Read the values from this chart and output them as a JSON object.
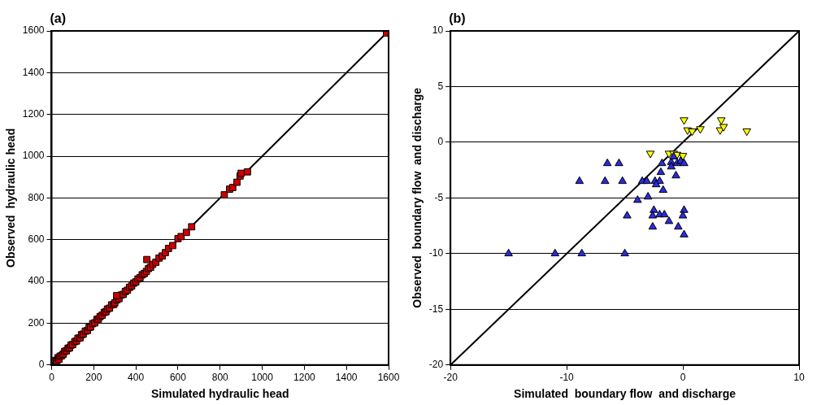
{
  "chart_data": [
    {
      "type": "scatter",
      "title": "(a)",
      "xlabel": "Simulated hydraulic head",
      "ylabel": "Observed  hydraulic head",
      "xlim": [
        0,
        1600
      ],
      "ylim": [
        0,
        1600
      ],
      "xticks": [
        0,
        200,
        400,
        600,
        800,
        1000,
        1200,
        1400,
        1600
      ],
      "yticks": [
        0,
        200,
        400,
        600,
        800,
        1000,
        1200,
        1400,
        1600
      ],
      "grid": "y",
      "legend": false,
      "series": [
        {
          "color": "#cc0000",
          "marker": "square",
          "x": [
            20,
            25,
            30,
            35,
            40,
            48,
            55,
            62,
            70,
            78,
            85,
            92,
            100,
            110,
            118,
            125,
            135,
            142,
            150,
            160,
            170,
            178,
            185,
            195,
            205,
            215,
            222,
            230,
            240,
            250,
            258,
            265,
            275,
            285,
            295,
            300,
            310,
            320,
            330,
            340,
            350,
            360,
            370,
            380,
            390,
            400,
            410,
            420,
            430,
            440,
            450,
            460,
            470,
            480,
            495,
            510,
            525,
            540,
            555,
            575,
            600,
            615,
            640,
            665,
            309,
            452,
            820,
            845,
            860,
            880,
            895,
            900,
            930,
            1590
          ],
          "values": [
            22,
            20,
            35,
            28,
            42,
            45,
            52,
            65,
            68,
            80,
            82,
            95,
            98,
            112,
            115,
            128,
            130,
            145,
            148,
            162,
            165,
            180,
            182,
            198,
            202,
            218,
            220,
            232,
            238,
            252,
            255,
            268,
            272,
            288,
            290,
            298,
            312,
            318,
            335,
            338,
            352,
            358,
            372,
            378,
            392,
            398,
            412,
            418,
            432,
            438,
            448,
            462,
            468,
            482,
            492,
            512,
            522,
            538,
            558,
            572,
            605,
            615,
            635,
            662,
            332,
            505,
            815,
            842,
            850,
            875,
            905,
            918,
            925,
            1590
          ]
        },
        {
          "type": "line",
          "color": "#000000",
          "marker": "none",
          "x": [
            0,
            1600
          ],
          "values": [
            0,
            1600
          ]
        }
      ]
    },
    {
      "type": "scatter",
      "title": "(b)",
      "xlabel": "Simulated  boundary flow  and discharge",
      "ylabel": "Observed  boundary flow  and discharge",
      "xlim": [
        -20,
        10
      ],
      "ylim": [
        -20,
        10
      ],
      "xticks": [
        -20,
        -10,
        0,
        10
      ],
      "yticks": [
        -20,
        -15,
        -10,
        -5,
        0,
        5,
        10
      ],
      "grid": "y",
      "legend": false,
      "series": [
        {
          "color": "#2b2bdd",
          "marker": "triangle",
          "x": [
            -15,
            -11,
            -8.7,
            -5,
            -8.9,
            -6.5,
            -5.5,
            -6.7,
            -5.2,
            -3.5,
            -3.1,
            -2.4,
            -2,
            -2.3,
            -1.7,
            -1.9,
            -1.8,
            -3.9,
            -3,
            -4.8,
            -2.5,
            -2.6,
            -2,
            -1.6,
            -1.2,
            -2.6,
            -0.4,
            0.1,
            0.1,
            0,
            -0.6,
            -1,
            -1,
            -0.8,
            -0.5,
            -0.2,
            0.1
          ],
          "values": [
            -10,
            -10,
            -10,
            -10,
            -3.5,
            -1.9,
            -1.9,
            -3.5,
            -3.5,
            -3.5,
            -3.5,
            -3.5,
            -3.5,
            -3.8,
            -4.3,
            -2.7,
            -1.9,
            -5.2,
            -4.9,
            -6.6,
            -6.1,
            -6.6,
            -6.5,
            -6.5,
            -7.1,
            -7.6,
            -7.6,
            -8.3,
            -6.1,
            -6.6,
            -3,
            -1.8,
            -2.2,
            -1.3,
            -1.9,
            -1.7,
            -1.9
          ]
        },
        {
          "color": "#ffff00",
          "marker": "triangle-down",
          "x": [
            0.1,
            0.4,
            0.8,
            1.5,
            3.3,
            3.2,
            3.5,
            5.5,
            -2.8,
            -1.2,
            -0.8,
            -0.5,
            0
          ],
          "values": [
            2,
            1.1,
            1,
            1.2,
            2,
            1.1,
            1.4,
            1,
            -1,
            -1,
            -1,
            -1.1,
            -1.2
          ]
        },
        {
          "type": "line",
          "color": "#000000",
          "marker": "none",
          "x": [
            -20,
            10
          ],
          "values": [
            -20,
            10
          ]
        }
      ]
    }
  ]
}
